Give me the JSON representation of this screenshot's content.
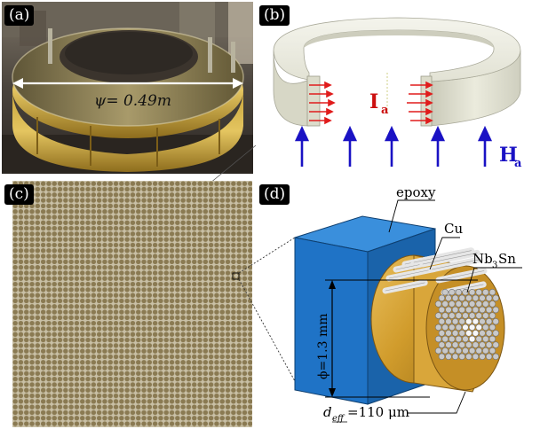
{
  "figure": {
    "panels": {
      "a": {
        "label": "(a)",
        "dimension_text": "ψ= 0.49m"
      },
      "b": {
        "label": "(b)",
        "current_label": "I",
        "current_sub": "a",
        "field_label": "H",
        "field_sub": "a"
      },
      "c": {
        "label": "(c)"
      },
      "d": {
        "label": "(d)",
        "epoxy": "epoxy",
        "cu": "Cu",
        "nb3sn": "Nb",
        "nb3sn_sub": "3",
        "nb3sn_tail": "Sn",
        "diameter": "ϕ=1.3 mm",
        "deff_main": "d",
        "deff_sub": "eff",
        "deff_value": "=110 μm"
      }
    },
    "colors": {
      "ring_outer": "#f2f2ea",
      "current_arrows": "#e01c1c",
      "field_arrows": "#1a12c4",
      "current_text": "#cc1010",
      "field_text": "#1a12c4",
      "epoxy_cube": "#1f73c6",
      "copper": "#d6a133",
      "filaments": "#dedede",
      "grid_dots": "#8a7a52"
    }
  }
}
